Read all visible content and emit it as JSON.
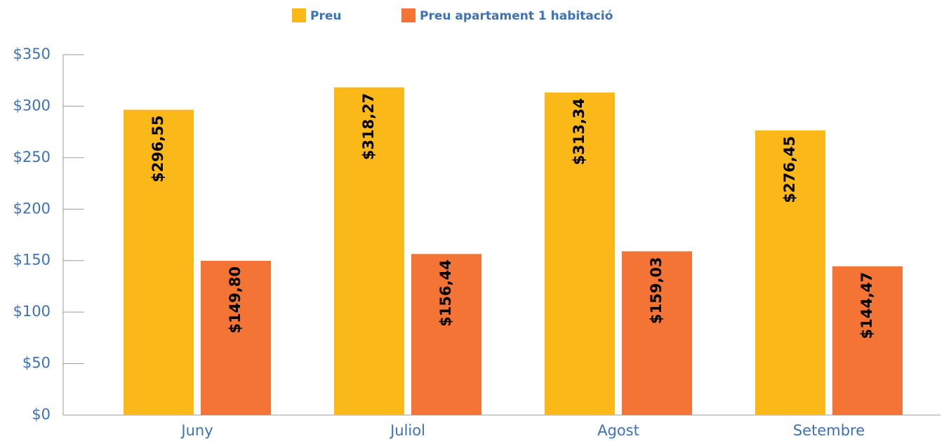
{
  "chart_data": {
    "type": "bar",
    "categories": [
      "Juny",
      "Juliol",
      "Agost",
      "Setembre"
    ],
    "series": [
      {
        "name": "Preu",
        "color": "#fab918",
        "values": [
          296.55,
          318.27,
          313.34,
          276.45
        ],
        "value_labels": [
          "$296,55",
          "$318,27",
          "$313,34",
          "$276,45"
        ]
      },
      {
        "name": "Preu apartament 1 habitació",
        "color": "#f37435",
        "values": [
          149.8,
          156.44,
          159.03,
          144.47
        ],
        "value_labels": [
          "$149,80",
          "$156,44",
          "$159,03",
          "$144,47"
        ]
      }
    ],
    "ylim": [
      0,
      350
    ],
    "yticks": [
      {
        "value": 0,
        "label": "$0"
      },
      {
        "value": 50,
        "label": "$50"
      },
      {
        "value": 100,
        "label": "$100"
      },
      {
        "value": 150,
        "label": "$150"
      },
      {
        "value": 200,
        "label": "$200"
      },
      {
        "value": 250,
        "label": "$250"
      },
      {
        "value": 300,
        "label": "$300"
      },
      {
        "value": 350,
        "label": "$350"
      }
    ],
    "legend": "top"
  }
}
